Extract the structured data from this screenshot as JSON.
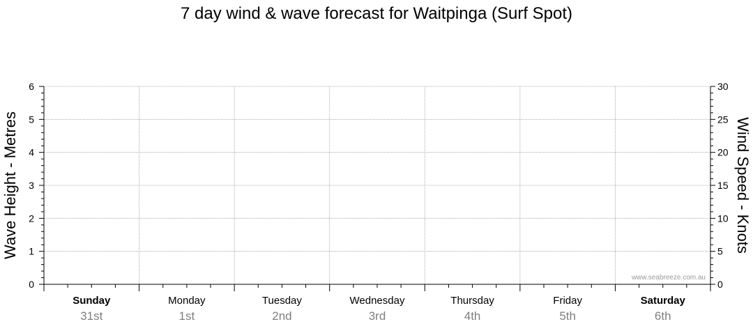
{
  "chart_data": {
    "type": "line",
    "title": "7 day wind & wave forecast for Waitpinga  (Surf Spot)",
    "ylabel_left": "Wave Height - Metres",
    "ylabel_right": "Wind Speed - Knots",
    "ylim_left": [
      0,
      6
    ],
    "ylim_right": [
      0,
      30
    ],
    "yticks_left": [
      "0",
      "1",
      "2",
      "3",
      "4",
      "5",
      "6"
    ],
    "yticks_right": [
      "0",
      "5",
      "10",
      "15",
      "20",
      "25",
      "30"
    ],
    "grid": true,
    "days": [
      {
        "name": "Sunday",
        "date": "31st",
        "bold": true
      },
      {
        "name": "Monday",
        "date": "1st",
        "bold": false
      },
      {
        "name": "Tuesday",
        "date": "2nd",
        "bold": false
      },
      {
        "name": "Wednesday",
        "date": "3rd",
        "bold": false
      },
      {
        "name": "Thursday",
        "date": "4th",
        "bold": false
      },
      {
        "name": "Friday",
        "date": "5th",
        "bold": false
      },
      {
        "name": "Saturday",
        "date": "6th",
        "bold": true
      }
    ],
    "series": [],
    "watermark": "www.seabreeze.com.au"
  }
}
